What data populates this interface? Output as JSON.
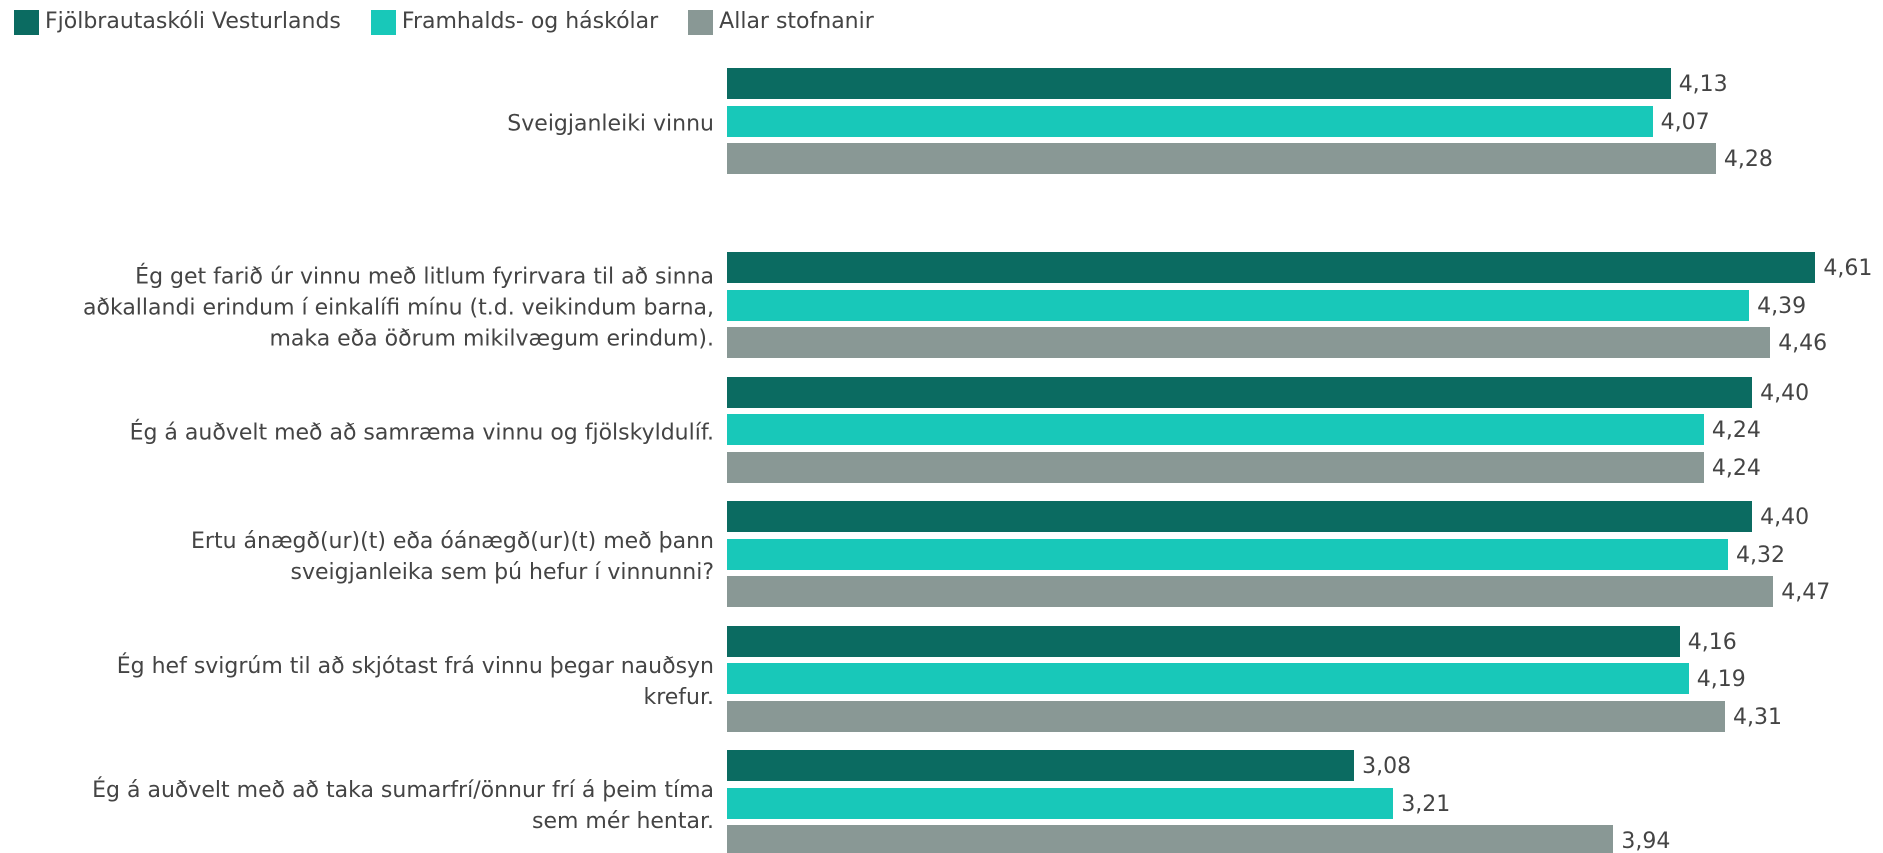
{
  "chart_data": {
    "type": "barh",
    "categories": [
      "Sveigjanleiki vinnu",
      "Ég get farið úr vinnu með litlum fyrirvara til að sinna aðkallandi erindum í einkalífi mínu (t.d. veikindum barna, maka eða öðrum mikilvægum erindum).",
      "Ég á auðvelt með að samræma vinnu og fjölskyldulíf.",
      "Ertu ánægð(ur)(t) eða óánægð(ur)(t) með þann sveigjanleika sem þú hefur í vinnunni?",
      "Ég hef svigrúm til að skjótast frá vinnu þegar nauðsyn krefur.",
      "Ég á auðvelt með að taka sumarfrí/önnur frí á þeim tíma sem mér hentar."
    ],
    "series": [
      {
        "name": "Fjölbrautaskóli Vesturlands",
        "color": "#0b6b61",
        "values": [
          4.13,
          4.61,
          4.4,
          4.4,
          4.16,
          3.08
        ],
        "value_labels": [
          "4,13",
          "4,61",
          "4,40",
          "4,40",
          "4,16",
          "3,08"
        ]
      },
      {
        "name": "Framhalds- og háskólar",
        "color": "#18c8b9",
        "values": [
          4.07,
          4.39,
          4.24,
          4.32,
          4.19,
          3.21
        ],
        "value_labels": [
          "4,07",
          "4,39",
          "4,24",
          "4,32",
          "4,19",
          "3,21"
        ]
      },
      {
        "name": "Allar stofnanir",
        "color": "#899895",
        "values": [
          4.28,
          4.46,
          4.24,
          4.47,
          4.31,
          3.94
        ],
        "value_labels": [
          "4,28",
          "4,46",
          "4,24",
          "4,47",
          "4,31",
          "3,94"
        ]
      }
    ],
    "xlim": [
      1,
      5
    ]
  }
}
